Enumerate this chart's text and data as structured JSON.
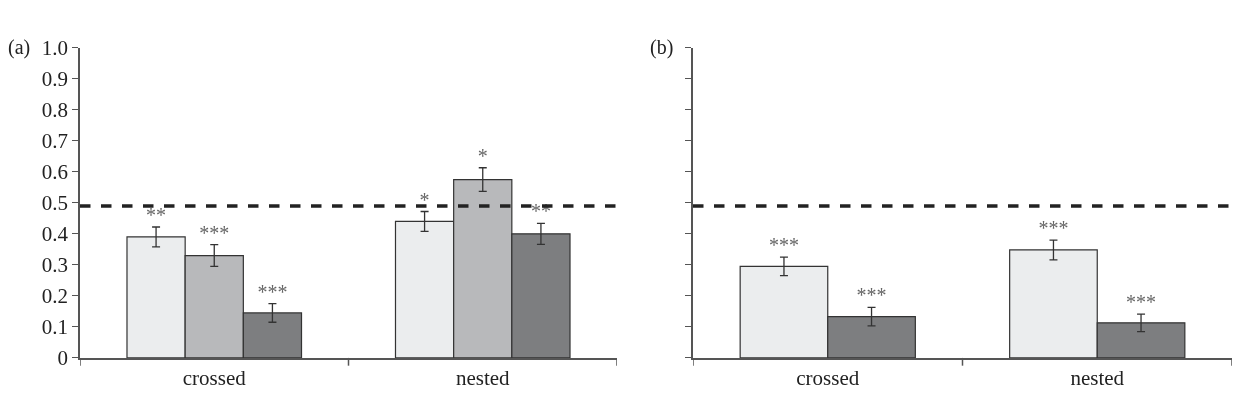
{
  "chart_data": [
    {
      "type": "bar",
      "title": "(a)",
      "categories": [
        "crossed",
        "nested"
      ],
      "ylim": [
        0,
        1.0
      ],
      "yticks": [
        0,
        0.1,
        0.2,
        0.3,
        0.4,
        0.5,
        0.6,
        0.7,
        0.8,
        0.9,
        {
          "value": 1.0,
          "label": "1.0"
        }
      ],
      "series": [
        {
          "color": "#ebedee",
          "values": [
            0.39,
            0.44
          ],
          "errors": [
            0.032,
            0.032
          ],
          "value_labels": [
            "**",
            "*"
          ]
        },
        {
          "color": "#b8b9bb",
          "values": [
            0.33,
            0.575
          ],
          "errors": [
            0.035,
            0.038
          ],
          "value_labels": [
            "***",
            "*"
          ]
        },
        {
          "color": "#7d7e80",
          "values": [
            0.145,
            0.4
          ],
          "errors": [
            0.03,
            0.034
          ],
          "value_labels": [
            "***",
            "**"
          ]
        }
      ],
      "ref_lines": [
        {
          "axis": "y",
          "value": 0.49,
          "color": "#222222",
          "line_style": "dashed"
        }
      ]
    },
    {
      "type": "bar",
      "title": "(b)",
      "categories": [
        "crossed",
        "nested"
      ],
      "ylim": [
        0,
        1.0
      ],
      "yticks": [
        0,
        0.1,
        0.2,
        0.3,
        0.4,
        0.5,
        0.6,
        0.7,
        0.8,
        0.9,
        1.0
      ],
      "tick_labels": "x",
      "series": [
        {
          "color": "#ebedee",
          "values": [
            0.295,
            0.348
          ],
          "errors": [
            0.03,
            0.032
          ],
          "value_labels": [
            "***",
            "***"
          ]
        },
        {
          "color": "#7d7e80",
          "values": [
            0.133,
            0.113
          ],
          "errors": [
            0.03,
            0.028
          ],
          "value_labels": [
            "***",
            "***"
          ]
        }
      ],
      "ref_lines": [
        {
          "axis": "y",
          "value": 0.49,
          "color": "#222222",
          "line_style": "dashed"
        }
      ]
    }
  ]
}
